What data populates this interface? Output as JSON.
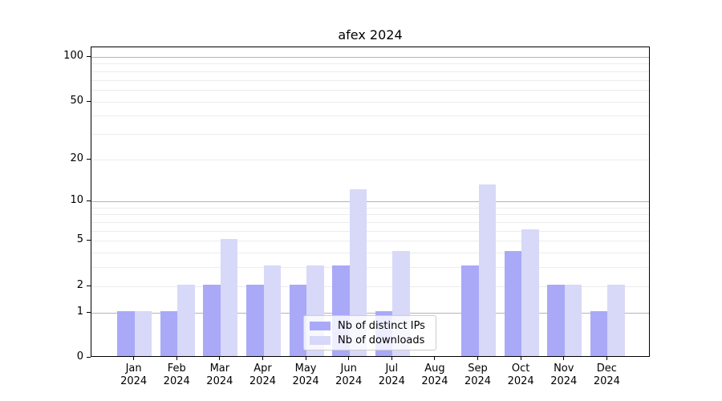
{
  "chart_data": {
    "type": "bar",
    "title": "afex 2024",
    "categories": [
      "Jan 2024",
      "Feb 2024",
      "Mar 2024",
      "Apr 2024",
      "May 2024",
      "Jun 2024",
      "Jul 2024",
      "Aug 2024",
      "Sep 2024",
      "Oct 2024",
      "Nov 2024",
      "Dec 2024"
    ],
    "series": [
      {
        "name": "Nb of distinct IPs",
        "color": "#a9a9f8",
        "values": [
          1,
          1,
          2,
          2,
          2,
          3,
          1,
          0,
          3,
          4,
          2,
          1
        ]
      },
      {
        "name": "Nb of downloads",
        "color": "#d8d8f8",
        "values": [
          1,
          2,
          5,
          3,
          3,
          12,
          4,
          0,
          13,
          6,
          2,
          2
        ]
      }
    ],
    "y_axis": {
      "scale": "log1p",
      "range": [
        0,
        100
      ],
      "tick_values": [
        0,
        1,
        2,
        5,
        10,
        20,
        50,
        100
      ],
      "major_gridlines": [
        1,
        10,
        100
      ],
      "minor_gridlines": [
        2,
        3,
        4,
        5,
        6,
        7,
        8,
        9,
        20,
        30,
        40,
        50,
        60,
        70,
        80,
        90
      ]
    },
    "legend": {
      "position": "inside-bottom-center"
    },
    "grid": true,
    "colors": {
      "background": "#ffffff",
      "axis": "#000000",
      "major_grid": "#b4b4b4",
      "minor_grid": "#ececec"
    }
  }
}
